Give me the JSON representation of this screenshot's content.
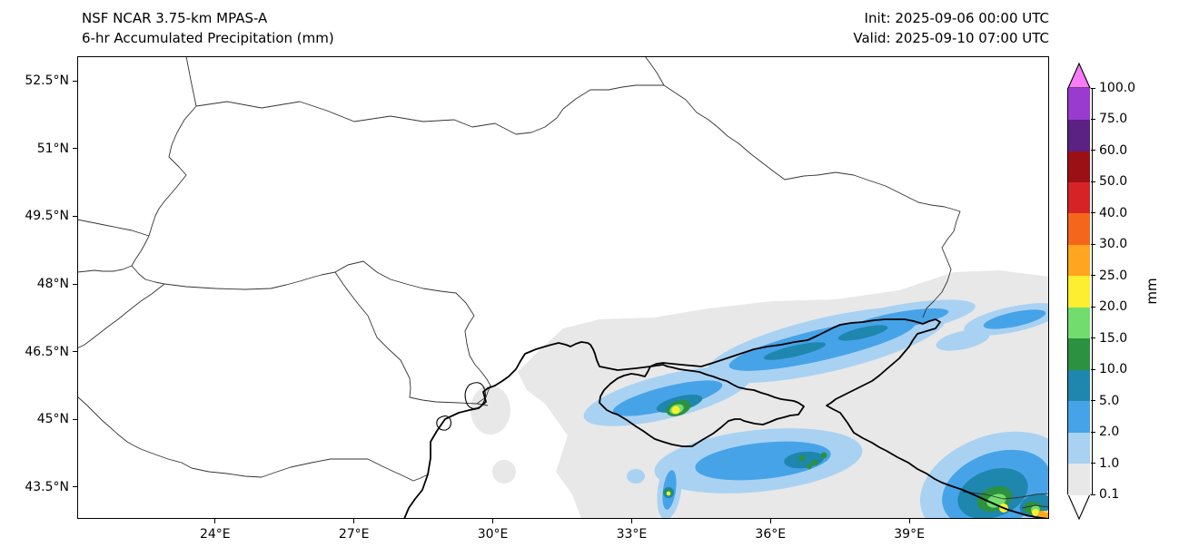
{
  "header": {
    "model_title": "NSF NCAR 3.75-km MPAS-A",
    "product_title": "6-hr Accumulated Precipitation (mm)",
    "init": "Init: 2025-09-06 00:00 UTC",
    "valid": "Valid: 2025-09-10 07:00 UTC"
  },
  "chart_data": {
    "type": "heatmap",
    "title": "NSF NCAR 3.75-km MPAS-A — 6-hr Accumulated Precipitation (mm)",
    "init_time": "2025-09-06 00:00 UTC",
    "valid_time": "2025-09-10 07:00 UTC",
    "map_extent": {
      "lon_min": 21.0,
      "lon_max": 42.0,
      "lat_min": 42.8,
      "lat_max": 53.05
    },
    "x_axis": {
      "ticks": [
        "24°E",
        "27°E",
        "30°E",
        "33°E",
        "36°E",
        "39°E"
      ],
      "tick_values": [
        24,
        27,
        30,
        33,
        36,
        39
      ]
    },
    "y_axis": {
      "ticks": [
        "52.5°N",
        "51°N",
        "49.5°N",
        "48°N",
        "46.5°N",
        "45°N",
        "43.5°N"
      ],
      "tick_values": [
        52.5,
        51,
        49.5,
        48,
        46.5,
        45,
        43.5
      ]
    },
    "colorbar": {
      "label": "mm",
      "levels": [
        0.1,
        1.0,
        2.0,
        5.0,
        10.0,
        15.0,
        20.0,
        25.0,
        30.0,
        40.0,
        50.0,
        60.0,
        75.0,
        100.0
      ],
      "tick_labels": [
        "0.1",
        "1.0",
        "2.0",
        "5.0",
        "10.0",
        "15.0",
        "20.0",
        "25.0",
        "30.0",
        "40.0",
        "50.0",
        "60.0",
        "75.0",
        "100.0"
      ],
      "band_colors": [
        "#e8e8e8",
        "#a9d2f2",
        "#47a3e8",
        "#1f86ae",
        "#2c9140",
        "#72dd6e",
        "#fdee30",
        "#ffa51f",
        "#f4661c",
        "#d62426",
        "#9b1015",
        "#5b2183",
        "#9a3bcf"
      ],
      "under_color": "#ffffff",
      "over_color": "#f97bf9",
      "legend_position": "right"
    },
    "precipitation_summary": [
      {
        "region": "NW Black Sea, Crimea, Sea of Azov and areas east to map edge",
        "values_mm": "0.1–1 widespread (light gray)"
      },
      {
        "region": "Elongated bands from NW of Crimea across the Sea of Azov toward the lower Don",
        "values_mm": "1–10"
      },
      {
        "region": "Local maximum near 34°E, 45.2°N (NW Crimea)",
        "values_mm": "15–25"
      },
      {
        "region": "Shower cluster over central Black Sea (~34–37.5°E, 43.5–44.5°N)",
        "values_mm": "1–15, isolated 20–25"
      },
      {
        "region": "Southeast corner along Caucasus coast (~40–42°E, below 44°N)",
        "values_mm": "2–30+ with embedded 20–30 cores"
      }
    ],
    "grid": false
  }
}
